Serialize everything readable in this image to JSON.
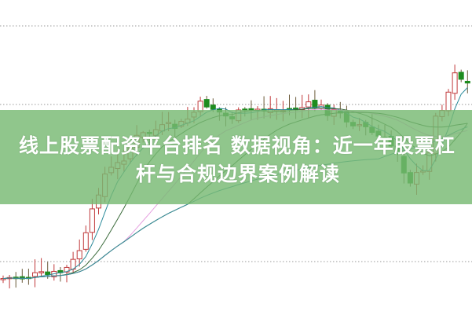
{
  "article": {
    "title_line1": "线上股票配资平台排名 数据视角：近一年股票杠",
    "title_line2": "杆与合规边界案例解读"
  },
  "colors": {
    "banner": "#78b973",
    "up_candle": "#c0393b",
    "down_candle": "#1e8c1e",
    "grid": "#9a9a9a"
  }
}
